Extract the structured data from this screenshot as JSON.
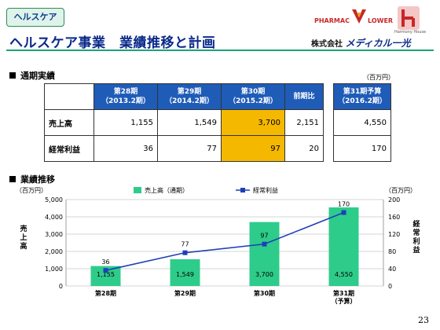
{
  "header": {
    "tag": "ヘルスケア",
    "title": "ヘルスケア事業　業績推移と計画",
    "logo_pharmac": "PHARMAC",
    "logo_lower": "LOWER",
    "logo_harmony": "Harmony House",
    "company_prefix": "株式会社",
    "company_brand": "メディカル一光"
  },
  "results_section": {
    "heading": "通期実績",
    "unit": "（百万円）",
    "columns": [
      "第28期\n（2013.2期）",
      "第29期\n（2014.2期）",
      "第30期\n（2015.2期）",
      "前期比"
    ],
    "forecast_column": "第31期予算\n（2016.2期）",
    "rows": [
      {
        "label": "売上高",
        "values": [
          "1,155",
          "1,549",
          "3,700",
          "2,151"
        ],
        "forecast": "4,550"
      },
      {
        "label": "経常利益",
        "values": [
          "36",
          "77",
          "97",
          "20"
        ],
        "forecast": "170"
      }
    ]
  },
  "trend_section": {
    "heading": "業績推移"
  },
  "chart_data": {
    "type": "bar",
    "categories": [
      "第28期",
      "第29期",
      "第30期",
      "第31期\n（予算）"
    ],
    "series": [
      {
        "name": "売上高（通期）",
        "type": "bar",
        "axis": "left",
        "values": [
          1155,
          1549,
          3700,
          4550
        ],
        "labels": [
          "1,155",
          "1,549",
          "3,700",
          "4,550"
        ],
        "color": "#2ecc8a"
      },
      {
        "name": "経常利益",
        "type": "line",
        "axis": "right",
        "values": [
          36,
          77,
          97,
          170
        ],
        "labels": [
          "36",
          "77",
          "97",
          "170"
        ],
        "color": "#1f3fb8"
      }
    ],
    "y_left": {
      "label": "売上高",
      "unit": "（百万円）",
      "ylim": [
        0,
        5000
      ],
      "ticks": [
        "0",
        "1,000",
        "2,000",
        "3,000",
        "4,000",
        "5,000"
      ]
    },
    "y_right": {
      "label": "経常利益",
      "unit": "（百万円）",
      "ylim": [
        0,
        200
      ],
      "ticks": [
        "0",
        "40",
        "80",
        "120",
        "160",
        "200"
      ]
    },
    "grid": true,
    "legend": "top"
  },
  "page_number": "23",
  "colors": {
    "accent": "#1aa37a",
    "table_header": "#1f5cb8",
    "highlight": "#f5b800",
    "title": "#0b2a8a"
  }
}
